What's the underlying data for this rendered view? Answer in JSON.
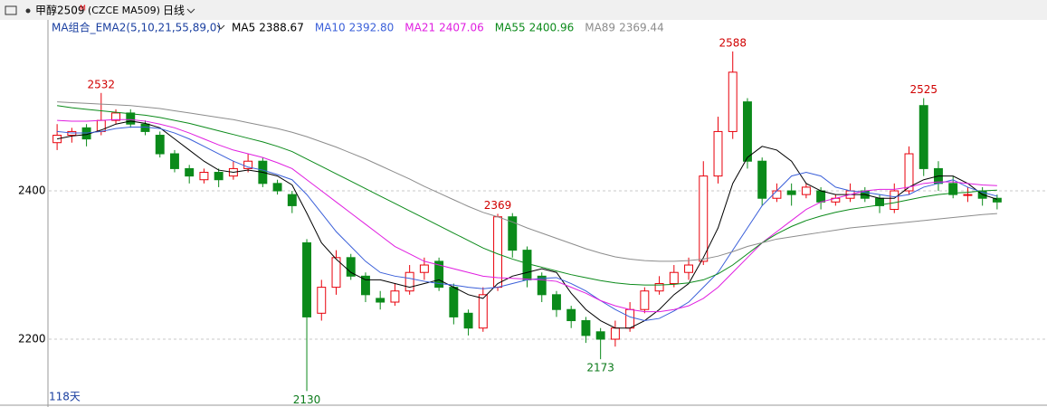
{
  "header": {
    "symbol": "甲醇2509",
    "flag": "M",
    "code": "(CZCE MA509)",
    "period": "日线"
  },
  "chart_data": {
    "type": "candlestick",
    "indicator": "MA组合_EMA2(5,10,21,55,89,0)",
    "footer": "118天",
    "up_color": "#e8000b",
    "down_color": "#0b8a1a",
    "grid": true,
    "ylim": [
      2111,
      2611
    ],
    "yticks": [
      2200,
      2400
    ],
    "open": [
      2465,
      2475,
      2485,
      2480,
      2495,
      2505,
      2490,
      2475,
      2450,
      2430,
      2415,
      2425,
      2420,
      2430,
      2440,
      2410,
      2395,
      2330,
      2235,
      2270,
      2310,
      2285,
      2255,
      2250,
      2265,
      2290,
      2305,
      2270,
      2235,
      2215,
      2270,
      2365,
      2320,
      2285,
      2260,
      2240,
      2225,
      2210,
      2200,
      2215,
      2240,
      2265,
      2275,
      2290,
      2305,
      2420,
      2480,
      2520,
      2440,
      2390,
      2400,
      2395,
      2400,
      2385,
      2390,
      2400,
      2390,
      2375,
      2400,
      2515,
      2430,
      2410,
      2395,
      2400,
      2390
    ],
    "high": [
      2490,
      2485,
      2490,
      2532,
      2510,
      2510,
      2495,
      2480,
      2455,
      2435,
      2430,
      2430,
      2440,
      2450,
      2445,
      2415,
      2400,
      2335,
      2280,
      2320,
      2315,
      2290,
      2265,
      2275,
      2300,
      2310,
      2310,
      2275,
      2240,
      2270,
      2369,
      2370,
      2325,
      2290,
      2265,
      2245,
      2230,
      2215,
      2225,
      2250,
      2270,
      2285,
      2300,
      2310,
      2440,
      2500,
      2588,
      2525,
      2445,
      2410,
      2410,
      2410,
      2405,
      2395,
      2410,
      2405,
      2395,
      2410,
      2460,
      2525,
      2440,
      2420,
      2405,
      2405,
      2395
    ],
    "low": [
      2455,
      2465,
      2460,
      2475,
      2490,
      2485,
      2475,
      2445,
      2425,
      2410,
      2410,
      2405,
      2415,
      2425,
      2405,
      2395,
      2370,
      2130,
      2225,
      2260,
      2280,
      2250,
      2240,
      2245,
      2260,
      2280,
      2265,
      2220,
      2205,
      2210,
      2265,
      2310,
      2270,
      2250,
      2230,
      2215,
      2195,
      2173,
      2190,
      2210,
      2235,
      2260,
      2270,
      2280,
      2300,
      2410,
      2470,
      2430,
      2380,
      2385,
      2380,
      2390,
      2375,
      2380,
      2385,
      2385,
      2370,
      2370,
      2395,
      2420,
      2400,
      2390,
      2385,
      2380,
      2375
    ],
    "close": [
      2475,
      2480,
      2470,
      2495,
      2505,
      2490,
      2480,
      2450,
      2430,
      2420,
      2425,
      2415,
      2430,
      2440,
      2410,
      2400,
      2380,
      2230,
      2270,
      2310,
      2285,
      2260,
      2250,
      2265,
      2290,
      2300,
      2270,
      2230,
      2215,
      2260,
      2365,
      2320,
      2280,
      2260,
      2240,
      2225,
      2205,
      2200,
      2215,
      2240,
      2265,
      2275,
      2290,
      2300,
      2420,
      2480,
      2560,
      2440,
      2390,
      2400,
      2395,
      2405,
      2385,
      2390,
      2400,
      2390,
      2380,
      2400,
      2450,
      2430,
      2410,
      2395,
      2395,
      2390,
      2385
    ],
    "series": [
      {
        "name": "MA5",
        "last_label": "2388.67",
        "color": "#000000",
        "values": [
          2470,
          2474,
          2476,
          2482,
          2490,
          2494,
          2491,
          2485,
          2470,
          2455,
          2440,
          2428,
          2425,
          2428,
          2425,
          2420,
          2408,
          2370,
          2330,
          2308,
          2290,
          2280,
          2280,
          2275,
          2270,
          2275,
          2280,
          2270,
          2260,
          2255,
          2275,
          2285,
          2290,
          2295,
          2290,
          2262,
          2240,
          2225,
          2215,
          2215,
          2225,
          2240,
          2260,
          2275,
          2310,
          2350,
          2410,
          2445,
          2460,
          2455,
          2440,
          2410,
          2400,
          2395,
          2395,
          2395,
          2390,
          2390,
          2405,
          2415,
          2420,
          2420,
          2410,
          2395,
          2388.67
        ]
      },
      {
        "name": "MA10",
        "last_label": "2392.80",
        "color": "#3a5fd9",
        "values": [
          2480,
          2478,
          2478,
          2480,
          2484,
          2486,
          2486,
          2484,
          2478,
          2470,
          2460,
          2450,
          2440,
          2432,
          2428,
          2422,
          2415,
          2395,
          2370,
          2345,
          2325,
          2305,
          2290,
          2285,
          2282,
          2278,
          2275,
          2273,
          2270,
          2268,
          2270,
          2275,
          2280,
          2282,
          2283,
          2275,
          2265,
          2252,
          2240,
          2230,
          2225,
          2228,
          2238,
          2250,
          2270,
          2290,
          2320,
          2350,
          2380,
          2400,
          2420,
          2425,
          2420,
          2405,
          2400,
          2398,
          2395,
          2392,
          2395,
          2405,
          2410,
          2415,
          2405,
          2398,
          2392.8
        ]
      },
      {
        "name": "MA21",
        "last_label": "2407.06",
        "color": "#e01ee0",
        "values": [
          2495,
          2494,
          2494,
          2495,
          2496,
          2496,
          2494,
          2490,
          2485,
          2478,
          2470,
          2462,
          2455,
          2450,
          2445,
          2438,
          2430,
          2415,
          2400,
          2385,
          2370,
          2355,
          2340,
          2325,
          2315,
          2305,
          2300,
          2295,
          2290,
          2285,
          2283,
          2282,
          2281,
          2280,
          2278,
          2270,
          2262,
          2252,
          2245,
          2240,
          2237,
          2237,
          2240,
          2245,
          2255,
          2270,
          2290,
          2310,
          2330,
          2345,
          2360,
          2375,
          2385,
          2390,
          2395,
          2400,
          2402,
          2402,
          2405,
          2410,
          2412,
          2412,
          2410,
          2408,
          2407.06
        ]
      },
      {
        "name": "MA55",
        "last_label": "2400.96",
        "color": "#0b8a1a",
        "values": [
          2515,
          2512,
          2510,
          2508,
          2506,
          2504,
          2502,
          2499,
          2495,
          2491,
          2486,
          2481,
          2476,
          2471,
          2466,
          2460,
          2453,
          2443,
          2433,
          2423,
          2413,
          2403,
          2393,
          2383,
          2373,
          2363,
          2353,
          2343,
          2333,
          2323,
          2315,
          2308,
          2302,
          2297,
          2292,
          2287,
          2283,
          2279,
          2276,
          2274,
          2273,
          2273,
          2274,
          2276,
          2280,
          2288,
          2300,
          2315,
          2330,
          2342,
          2352,
          2360,
          2366,
          2371,
          2375,
          2378,
          2381,
          2384,
          2388,
          2392,
          2395,
          2397,
          2398,
          2400,
          2400.96
        ]
      },
      {
        "name": "MA89",
        "last_label": "2369.44",
        "color": "#8c8c8c",
        "values": [
          2520,
          2519,
          2518,
          2517,
          2516,
          2515,
          2513,
          2511,
          2508,
          2505,
          2502,
          2499,
          2496,
          2492,
          2488,
          2484,
          2479,
          2473,
          2466,
          2459,
          2451,
          2443,
          2434,
          2425,
          2416,
          2406,
          2397,
          2388,
          2379,
          2371,
          2365,
          2358,
          2350,
          2343,
          2336,
          2329,
          2322,
          2316,
          2311,
          2308,
          2306,
          2305,
          2305,
          2306,
          2308,
          2312,
          2318,
          2325,
          2330,
          2335,
          2338,
          2341,
          2344,
          2347,
          2350,
          2352,
          2354,
          2356,
          2358,
          2360,
          2362,
          2364,
          2366,
          2368,
          2369.44
        ]
      }
    ]
  }
}
